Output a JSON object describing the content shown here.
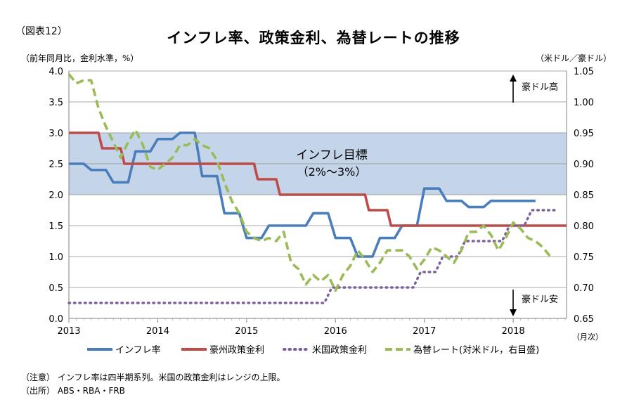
{
  "figure_label": "（図表12）",
  "notes": {
    "note": "（注意） インフレ率は四半期系列。米国の政策金利はレンジの上限。",
    "source": "（出所） ABS・RBA・FRB"
  },
  "chart_data": {
    "type": "line",
    "title": "インフレ率、政策金利、為替レートの推移",
    "ylabel_left": "（前年同月比，金利水準，%）",
    "ylabel_right": "（米ドル／豪ドル）",
    "xunit": "（月次）",
    "ylim_left": [
      0.0,
      4.0
    ],
    "ylim_right": [
      0.65,
      1.05
    ],
    "yticks_left": [
      "0.0",
      "0.5",
      "1.0",
      "1.5",
      "2.0",
      "2.5",
      "3.0",
      "3.5",
      "4.0"
    ],
    "yticks_right": [
      "0.65",
      "0.70",
      "0.75",
      "0.80",
      "0.85",
      "0.90",
      "0.95",
      "1.00",
      "1.05"
    ],
    "xticks": [
      "2013",
      "2014",
      "2015",
      "2016",
      "2017",
      "2018"
    ],
    "xlim": [
      2013.0,
      2018.6
    ],
    "grid": true,
    "legend_position": "bottom",
    "target_band": {
      "low": 2.0,
      "high": 3.0,
      "label": "インフレ目標",
      "sublabel": "（2%～3%）",
      "color": "#c5d5e9"
    },
    "annotations": [
      {
        "text": "豪ドル高",
        "direction": "up"
      },
      {
        "text": "豪ドル安",
        "direction": "down"
      }
    ],
    "series": [
      {
        "name": "インフレ率",
        "axis": "left",
        "color": "#4a7ebb",
        "style": "solid",
        "x": [
          2013.0,
          2013.167,
          2013.25,
          2013.417,
          2013.5,
          2013.667,
          2013.75,
          2013.917,
          2014.0,
          2014.167,
          2014.25,
          2014.417,
          2014.5,
          2014.667,
          2014.75,
          2014.917,
          2015.0,
          2015.167,
          2015.25,
          2015.417,
          2015.5,
          2015.667,
          2015.75,
          2015.917,
          2016.0,
          2016.167,
          2016.25,
          2016.417,
          2016.5,
          2016.667,
          2016.75,
          2016.917,
          2017.0,
          2017.167,
          2017.25,
          2017.417,
          2017.5,
          2017.667,
          2017.75,
          2017.917,
          2018.0,
          2018.167,
          2018.25
        ],
        "y": [
          2.5,
          2.5,
          2.4,
          2.4,
          2.2,
          2.2,
          2.7,
          2.7,
          2.9,
          2.9,
          3.0,
          3.0,
          2.3,
          2.3,
          1.7,
          1.7,
          1.3,
          1.3,
          1.5,
          1.5,
          1.5,
          1.5,
          1.7,
          1.7,
          1.3,
          1.3,
          1.0,
          1.0,
          1.3,
          1.3,
          1.5,
          1.5,
          2.1,
          2.1,
          1.9,
          1.9,
          1.8,
          1.8,
          1.9,
          1.9,
          1.9,
          1.9,
          1.9
        ]
      },
      {
        "name": "豪州政策金利",
        "axis": "left",
        "color": "#be4b48",
        "style": "solid",
        "x": [
          2013.0,
          2013.333,
          2013.375,
          2013.583,
          2013.625,
          2015.083,
          2015.125,
          2015.333,
          2015.375,
          2016.333,
          2016.375,
          2016.583,
          2016.625,
          2018.6
        ],
        "y": [
          3.0,
          3.0,
          2.75,
          2.75,
          2.5,
          2.5,
          2.25,
          2.25,
          2.0,
          2.0,
          1.75,
          1.75,
          1.5,
          1.5
        ]
      },
      {
        "name": "米国政策金利",
        "axis": "left",
        "color": "#7d60a0",
        "style": "dotted",
        "x": [
          2013.0,
          2015.875,
          2015.958,
          2016.875,
          2016.958,
          2017.125,
          2017.208,
          2017.375,
          2017.458,
          2017.875,
          2017.958,
          2018.125,
          2018.208,
          2018.5
        ],
        "y": [
          0.25,
          0.25,
          0.5,
          0.5,
          0.75,
          0.75,
          1.0,
          1.0,
          1.25,
          1.25,
          1.5,
          1.5,
          1.75,
          1.75
        ]
      },
      {
        "name": "為替レート(対米ドル，右目盛)",
        "axis": "right",
        "color": "#9bbb59",
        "style": "dashed",
        "x": [
          2013.0,
          2013.083,
          2013.167,
          2013.25,
          2013.333,
          2013.417,
          2013.5,
          2013.583,
          2013.667,
          2013.75,
          2013.833,
          2013.917,
          2014.0,
          2014.083,
          2014.167,
          2014.25,
          2014.333,
          2014.417,
          2014.5,
          2014.583,
          2014.667,
          2014.75,
          2014.833,
          2014.917,
          2015.0,
          2015.083,
          2015.167,
          2015.25,
          2015.333,
          2015.417,
          2015.5,
          2015.583,
          2015.667,
          2015.75,
          2015.833,
          2015.917,
          2016.0,
          2016.083,
          2016.167,
          2016.25,
          2016.333,
          2016.417,
          2016.5,
          2016.583,
          2016.667,
          2016.75,
          2016.833,
          2016.917,
          2017.0,
          2017.083,
          2017.167,
          2017.25,
          2017.333,
          2017.417,
          2017.5,
          2017.583,
          2017.667,
          2017.75,
          2017.833,
          2017.917,
          2018.0,
          2018.083,
          2018.167,
          2018.25,
          2018.333,
          2018.417
        ],
        "y": [
          1.045,
          1.03,
          1.035,
          1.035,
          0.99,
          0.96,
          0.935,
          0.91,
          0.935,
          0.955,
          0.93,
          0.895,
          0.89,
          0.9,
          0.91,
          0.93,
          0.93,
          0.94,
          0.93,
          0.925,
          0.905,
          0.87,
          0.84,
          0.82,
          0.79,
          0.78,
          0.775,
          0.78,
          0.775,
          0.79,
          0.74,
          0.73,
          0.705,
          0.72,
          0.71,
          0.72,
          0.695,
          0.72,
          0.735,
          0.76,
          0.745,
          0.725,
          0.74,
          0.76,
          0.76,
          0.76,
          0.75,
          0.73,
          0.745,
          0.765,
          0.76,
          0.75,
          0.74,
          0.76,
          0.79,
          0.79,
          0.8,
          0.785,
          0.76,
          0.78,
          0.805,
          0.795,
          0.78,
          0.775,
          0.765,
          0.75
        ]
      }
    ]
  }
}
